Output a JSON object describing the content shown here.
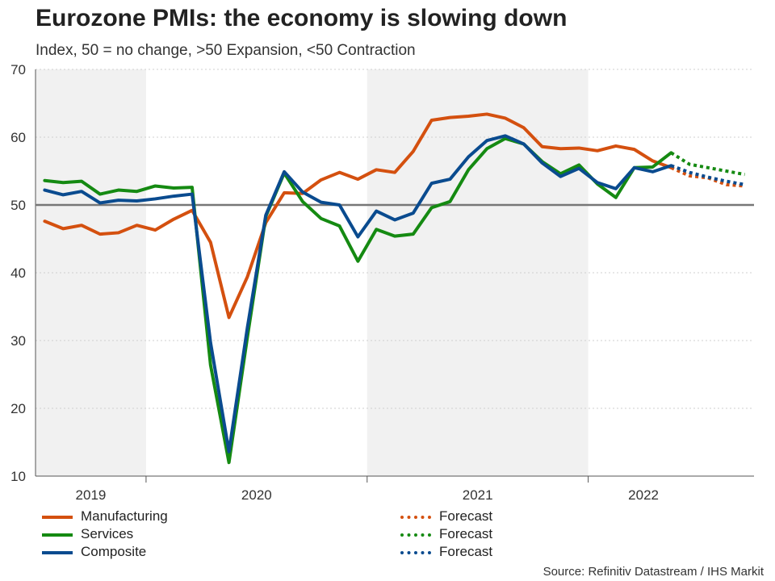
{
  "chart_data": {
    "type": "line",
    "title": "Eurozone PMIs: the economy is slowing down",
    "subtitle": "Index, 50 = no change, >50 Expansion, <50 Contraction",
    "ylim": [
      10,
      70
    ],
    "yticks": [
      10,
      20,
      30,
      40,
      50,
      60,
      70
    ],
    "reference_line": 50,
    "x_start_index": 0,
    "x_count": 39,
    "year_labels": [
      {
        "label": "2019",
        "center": 2.5
      },
      {
        "label": "2020",
        "center": 11.5
      },
      {
        "label": "2021",
        "center": 23.5
      },
      {
        "label": "2022",
        "center": 32.5
      }
    ],
    "shaded_years": [
      {
        "from": -0.5,
        "to": 5.5
      },
      {
        "from": 17.5,
        "to": 29.5
      }
    ],
    "forecast_from": 35,
    "series": [
      {
        "name": "Manufacturing",
        "color": "#d4500f",
        "values": [
          47.6,
          46.5,
          47.0,
          45.7,
          45.9,
          47.0,
          46.3,
          47.9,
          49.2,
          44.5,
          33.4,
          39.4,
          47.4,
          51.8,
          51.7,
          53.7,
          54.8,
          53.8,
          55.2,
          54.8,
          57.9,
          62.5,
          62.9,
          63.1,
          63.4,
          62.8,
          61.4,
          58.6,
          58.3,
          58.4,
          58.0,
          58.7,
          58.2,
          56.5,
          55.5,
          54.3,
          54.0,
          53.0,
          52.8
        ]
      },
      {
        "name": "Services",
        "color": "#158a12",
        "values": [
          53.6,
          53.3,
          53.5,
          51.6,
          52.2,
          52.0,
          52.8,
          52.5,
          52.6,
          26.4,
          12.0,
          30.5,
          48.3,
          54.7,
          50.5,
          48.0,
          46.9,
          41.7,
          46.4,
          45.4,
          45.7,
          49.6,
          50.5,
          55.2,
          58.3,
          59.8,
          59.0,
          56.4,
          54.6,
          55.9,
          53.1,
          51.1,
          55.5,
          55.6,
          57.7,
          56.0,
          55.5,
          55.0,
          54.5
        ]
      },
      {
        "name": "Composite",
        "color": "#0a4b8f",
        "values": [
          52.2,
          51.5,
          52.0,
          50.3,
          50.7,
          50.6,
          50.9,
          51.3,
          51.6,
          29.7,
          13.6,
          31.9,
          48.5,
          54.9,
          51.9,
          50.4,
          50.0,
          45.3,
          49.1,
          47.8,
          48.8,
          53.2,
          53.8,
          57.1,
          59.5,
          60.2,
          59.0,
          56.2,
          54.2,
          55.4,
          53.3,
          52.4,
          55.5,
          54.9,
          55.8,
          54.8,
          54.1,
          53.5,
          53.0
        ]
      }
    ],
    "legend": [
      {
        "label": "Manufacturing",
        "color": "#d4500f",
        "style": "solid"
      },
      {
        "label": "Services",
        "color": "#158a12",
        "style": "solid"
      },
      {
        "label": "Composite",
        "color": "#0a4b8f",
        "style": "solid"
      },
      {
        "label": "Forecast",
        "color": "#d4500f",
        "style": "dotted"
      },
      {
        "label": "Forecast",
        "color": "#158a12",
        "style": "dotted"
      },
      {
        "label": "Forecast",
        "color": "#0a4b8f",
        "style": "dotted"
      }
    ],
    "source": "Source: Refinitiv Datastream / IHS Markit"
  }
}
